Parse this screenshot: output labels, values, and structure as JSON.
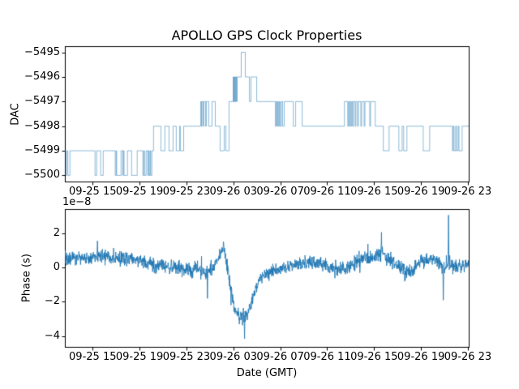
{
  "figure": {
    "background": "#ffffff",
    "accent_color": "#1f77b4"
  },
  "chart_data": [
    {
      "type": "line",
      "subtype": "step-post",
      "title": "APOLLO GPS Clock Properties",
      "ylabel": "DAC",
      "line_color": "#1f77b4",
      "line_alpha": 0.5,
      "xlim_hours": [
        12.63,
        47.07
      ],
      "ylim": [
        -5500.25,
        -5494.75
      ],
      "yticks": [
        -5495,
        -5496,
        -5497,
        -5498,
        -5499,
        -5500
      ],
      "ytick_labels": [
        "−5495",
        "−5496",
        "−5497",
        "−5498",
        "−5499",
        "−5500"
      ],
      "xtick_hours": [
        15,
        19,
        23,
        27,
        31,
        35,
        39,
        43,
        47
      ],
      "xtick_labels": [
        "09-25 15",
        "09-25 19",
        "09-25 23",
        "09-26 03",
        "09-26 07",
        "09-26 11",
        "09-26 15",
        "09-26 19",
        "09-26 23"
      ],
      "grid": false,
      "legend": null,
      "steps_h_dac": [
        [
          12.65,
          -5499
        ],
        [
          12.7,
          -5500
        ],
        [
          12.78,
          -5499
        ],
        [
          12.88,
          -5500
        ],
        [
          13.06,
          -5499
        ],
        [
          15.2,
          -5500
        ],
        [
          15.35,
          -5499
        ],
        [
          15.68,
          -5500
        ],
        [
          15.9,
          -5499
        ],
        [
          16.92,
          -5500
        ],
        [
          17.0,
          -5499
        ],
        [
          17.05,
          -5500
        ],
        [
          17.42,
          -5499
        ],
        [
          17.56,
          -5500
        ],
        [
          17.62,
          -5499
        ],
        [
          17.68,
          -5500
        ],
        [
          17.97,
          -5499
        ],
        [
          18.32,
          -5500
        ],
        [
          18.8,
          -5499
        ],
        [
          19.28,
          -5500
        ],
        [
          19.36,
          -5499
        ],
        [
          19.42,
          -5500
        ],
        [
          19.56,
          -5499
        ],
        [
          19.7,
          -5500
        ],
        [
          19.76,
          -5499
        ],
        [
          19.82,
          -5500
        ],
        [
          19.9,
          -5499
        ],
        [
          19.95,
          -5500
        ],
        [
          20.05,
          -5499
        ],
        [
          20.19,
          -5498
        ],
        [
          20.82,
          -5499
        ],
        [
          21.16,
          -5498
        ],
        [
          21.51,
          -5499
        ],
        [
          21.86,
          -5498
        ],
        [
          22.13,
          -5499
        ],
        [
          22.41,
          -5498
        ],
        [
          22.48,
          -5499
        ],
        [
          22.76,
          -5498
        ],
        [
          24.21,
          -5497
        ],
        [
          24.28,
          -5498
        ],
        [
          24.32,
          -5497
        ],
        [
          24.42,
          -5498
        ],
        [
          24.49,
          -5497
        ],
        [
          24.63,
          -5498
        ],
        [
          24.7,
          -5497
        ],
        [
          24.9,
          -5498
        ],
        [
          25.18,
          -5497
        ],
        [
          25.46,
          -5498
        ],
        [
          25.87,
          -5499
        ],
        [
          26.22,
          -5498
        ],
        [
          26.36,
          -5499
        ],
        [
          26.63,
          -5497
        ],
        [
          26.98,
          -5496
        ],
        [
          27.02,
          -5497
        ],
        [
          27.06,
          -5496
        ],
        [
          27.1,
          -5497
        ],
        [
          27.14,
          -5496
        ],
        [
          27.19,
          -5497
        ],
        [
          27.24,
          -5496
        ],
        [
          27.28,
          -5497
        ],
        [
          27.33,
          -5496
        ],
        [
          27.67,
          -5495
        ],
        [
          28.02,
          -5496
        ],
        [
          28.37,
          -5497
        ],
        [
          28.5,
          -5496
        ],
        [
          28.99,
          -5497
        ],
        [
          30.58,
          -5498
        ],
        [
          30.65,
          -5497
        ],
        [
          30.72,
          -5498
        ],
        [
          30.79,
          -5497
        ],
        [
          30.86,
          -5498
        ],
        [
          30.93,
          -5497
        ],
        [
          31.0,
          -5498
        ],
        [
          31.1,
          -5497
        ],
        [
          31.2,
          -5498
        ],
        [
          31.34,
          -5497
        ],
        [
          32.11,
          -5498
        ],
        [
          32.31,
          -5497
        ],
        [
          32.87,
          -5498
        ],
        [
          36.47,
          -5497
        ],
        [
          36.75,
          -5498
        ],
        [
          36.82,
          -5497
        ],
        [
          36.89,
          -5498
        ],
        [
          36.96,
          -5497
        ],
        [
          37.03,
          -5498
        ],
        [
          37.1,
          -5497
        ],
        [
          37.17,
          -5498
        ],
        [
          37.24,
          -5497
        ],
        [
          37.38,
          -5498
        ],
        [
          37.45,
          -5497
        ],
        [
          37.59,
          -5498
        ],
        [
          37.66,
          -5497
        ],
        [
          37.87,
          -5498
        ],
        [
          37.94,
          -5497
        ],
        [
          38.15,
          -5498
        ],
        [
          38.22,
          -5497
        ],
        [
          38.63,
          -5498
        ],
        [
          38.7,
          -5497
        ],
        [
          39.1,
          -5498
        ],
        [
          39.79,
          -5499
        ],
        [
          40.28,
          -5498
        ],
        [
          41.11,
          -5499
        ],
        [
          41.39,
          -5498
        ],
        [
          41.52,
          -5499
        ],
        [
          41.8,
          -5498
        ],
        [
          43.19,
          -5499
        ],
        [
          43.74,
          -5498
        ],
        [
          45.68,
          -5499
        ],
        [
          45.75,
          -5498
        ],
        [
          45.82,
          -5499
        ],
        [
          45.96,
          -5498
        ],
        [
          46.03,
          -5499
        ],
        [
          46.17,
          -5498
        ],
        [
          46.24,
          -5499
        ],
        [
          46.51,
          -5498
        ]
      ]
    },
    {
      "type": "line",
      "subtype": "noisy-series",
      "ylabel": "Phase (s)",
      "offset_text": "1e−8",
      "xlabel": "Date (GMT)",
      "line_color": "#1f77b4",
      "xlim_hours": [
        12.63,
        47.07
      ],
      "ylim_1e8": [
        -4.62,
        3.4
      ],
      "yticks_1e8": [
        2,
        0,
        -2,
        -4
      ],
      "ytick_labels": [
        "2",
        "0",
        "−2",
        "−4"
      ],
      "xtick_hours": [
        15,
        19,
        23,
        27,
        31,
        35,
        39,
        43,
        47
      ],
      "xtick_labels": [
        "09-25 15",
        "09-25 19",
        "09-25 23",
        "09-26 03",
        "09-26 07",
        "09-26 11",
        "09-26 15",
        "09-26 19",
        "09-26 23"
      ],
      "grid": false,
      "legend": null,
      "points_count": 1700,
      "noise_seed": 42,
      "anchors_h_mean_amp": [
        [
          12.63,
          0.5,
          0.45
        ],
        [
          13.5,
          0.55,
          0.4
        ],
        [
          14.5,
          0.5,
          0.45
        ],
        [
          15.5,
          0.65,
          0.5
        ],
        [
          16.5,
          0.6,
          0.45
        ],
        [
          17.5,
          0.55,
          0.5
        ],
        [
          18.5,
          0.45,
          0.4
        ],
        [
          19.5,
          0.3,
          0.45
        ],
        [
          20.5,
          0.1,
          0.45
        ],
        [
          21.5,
          0.05,
          0.4
        ],
        [
          22.3,
          0.0,
          0.45
        ],
        [
          23.2,
          -0.2,
          0.5
        ],
        [
          24.0,
          -0.1,
          0.4
        ],
        [
          24.7,
          -0.35,
          0.55
        ],
        [
          25.4,
          0.1,
          0.4
        ],
        [
          25.9,
          0.9,
          0.35
        ],
        [
          26.2,
          1.1,
          0.3
        ],
        [
          26.45,
          0.2,
          0.5
        ],
        [
          26.8,
          -1.3,
          0.5
        ],
        [
          27.1,
          -2.4,
          0.45
        ],
        [
          27.45,
          -2.7,
          0.5
        ],
        [
          27.8,
          -2.8,
          0.55
        ],
        [
          28.1,
          -2.75,
          0.5
        ],
        [
          28.5,
          -2.2,
          0.45
        ],
        [
          28.9,
          -1.3,
          0.4
        ],
        [
          29.3,
          -0.6,
          0.35
        ],
        [
          29.8,
          -0.4,
          0.4
        ],
        [
          30.3,
          -0.25,
          0.4
        ],
        [
          31.0,
          -0.05,
          0.35
        ],
        [
          32.0,
          0.1,
          0.35
        ],
        [
          33.0,
          0.25,
          0.4
        ],
        [
          33.8,
          0.3,
          0.45
        ],
        [
          34.5,
          0.25,
          0.4
        ],
        [
          35.3,
          -0.1,
          0.45
        ],
        [
          36.0,
          -0.15,
          0.45
        ],
        [
          36.7,
          0.0,
          0.4
        ],
        [
          37.5,
          0.3,
          0.5
        ],
        [
          38.3,
          0.6,
          0.55
        ],
        [
          39.0,
          0.5,
          0.5
        ],
        [
          39.6,
          0.9,
          0.55
        ],
        [
          40.2,
          0.45,
          0.45
        ],
        [
          40.9,
          0.2,
          0.45
        ],
        [
          41.7,
          -0.25,
          0.45
        ],
        [
          42.4,
          -0.1,
          0.4
        ],
        [
          43.1,
          0.3,
          0.45
        ],
        [
          43.8,
          0.55,
          0.4
        ],
        [
          44.5,
          0.3,
          0.4
        ],
        [
          45.0,
          -0.1,
          0.45
        ],
        [
          45.4,
          0.3,
          0.6
        ],
        [
          45.9,
          0.1,
          0.5
        ],
        [
          46.5,
          0.05,
          0.4
        ],
        [
          47.07,
          0.2,
          0.35
        ]
      ],
      "spikes_h_v": [
        [
          15.4,
          1.55
        ],
        [
          24.8,
          -1.8
        ],
        [
          26.15,
          1.5
        ],
        [
          27.5,
          -3.3
        ],
        [
          27.95,
          -4.15
        ],
        [
          39.63,
          2.05
        ],
        [
          44.9,
          -1.9
        ],
        [
          45.34,
          3.05
        ]
      ]
    }
  ]
}
